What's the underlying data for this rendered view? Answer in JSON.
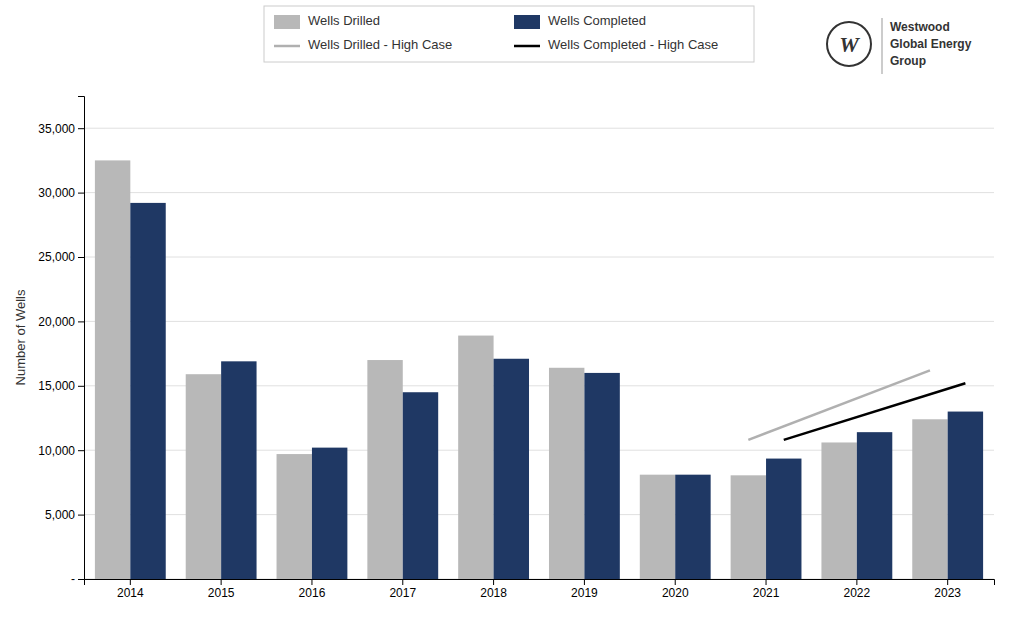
{
  "chart_data": {
    "type": "bar",
    "ylabel": "Number of Wells",
    "categories": [
      "2014",
      "2015",
      "2016",
      "2017",
      "2018",
      "2019",
      "2020",
      "2021",
      "2022",
      "2023"
    ],
    "series": [
      {
        "name": "Wells Drilled",
        "color": "#b8b8b8",
        "values": [
          32500,
          15900,
          9700,
          17000,
          18900,
          16400,
          8100,
          8050,
          10600,
          12400
        ]
      },
      {
        "name": "Wells Completed",
        "color": "#1f3864",
        "values": [
          29200,
          16900,
          10200,
          14500,
          17100,
          16000,
          8100,
          9350,
          11400,
          13000
        ]
      },
      {
        "name": "Wells Drilled - High Case",
        "type": "line",
        "color": "#b0b0b0",
        "x": [
          "2021",
          "2023"
        ],
        "values": [
          10800,
          16200
        ]
      },
      {
        "name": "Wells Completed - High Case",
        "type": "line",
        "color": "#000000",
        "x": [
          "2021",
          "2023"
        ],
        "values": [
          10800,
          15200
        ]
      }
    ],
    "ylim": [
      0,
      37500
    ],
    "yticks": [
      {
        "value": 0,
        "label": "-"
      },
      {
        "value": 5000,
        "label": "5,000"
      },
      {
        "value": 10000,
        "label": "10,000"
      },
      {
        "value": 15000,
        "label": "15,000"
      },
      {
        "value": 20000,
        "label": "20,000"
      },
      {
        "value": 25000,
        "label": "25,000"
      },
      {
        "value": 30000,
        "label": "30,000"
      },
      {
        "value": 35000,
        "label": "35,000"
      }
    ],
    "grid": true,
    "legend": "top",
    "annotations": [
      "W",
      "Westwood",
      "Global Energy",
      "Group"
    ]
  }
}
